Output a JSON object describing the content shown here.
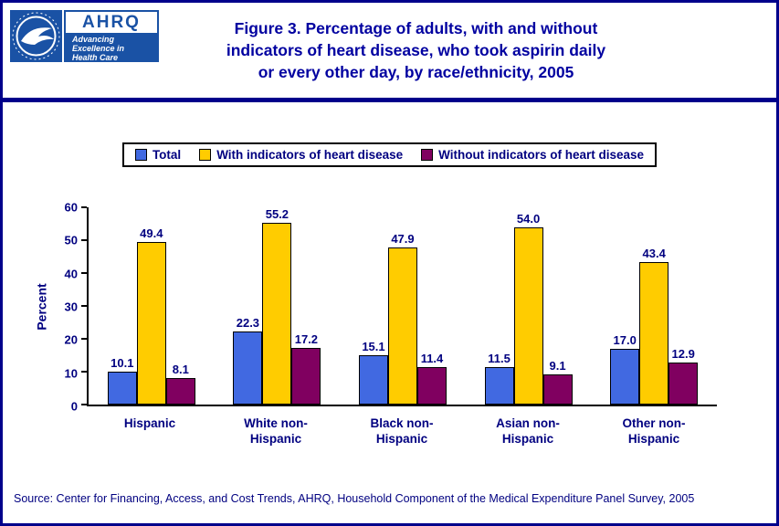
{
  "header": {
    "title_lines": [
      "Figure 3. Percentage of adults, with and without",
      "indicators of heart disease, who took aspirin daily",
      "or every other day, by race/ethnicity, 2005"
    ],
    "ahrq_acronym": "AHRQ",
    "ahrq_tagline_lines": [
      "Advancing",
      "Excellence in",
      "Health Care"
    ]
  },
  "colors": {
    "border_navy": "#00008B",
    "text_navy": "#000080",
    "title_blue": "#0000A0",
    "logo_blue": "#1A52A5"
  },
  "source": "Source: Center for Financing, Access, and Cost Trends, AHRQ, Household Component of the Medical Expenditure Panel Survey, 2005",
  "chart_data": {
    "type": "bar",
    "title": "Figure 3. Percentage of adults, with and without indicators of heart disease, who took aspirin daily or every other day, by race/ethnicity, 2005",
    "categories": [
      "Hispanic",
      "White non-Hispanic",
      "Black non-Hispanic",
      "Asian non-Hispanic",
      "Other non-Hispanic"
    ],
    "category_label_lines": [
      [
        "Hispanic"
      ],
      [
        "White non-",
        "Hispanic"
      ],
      [
        "Black non-",
        "Hispanic"
      ],
      [
        "Asian non-",
        "Hispanic"
      ],
      [
        "Other non-",
        "Hispanic"
      ]
    ],
    "series": [
      {
        "name": "Total",
        "color": "#4169E1",
        "values": [
          10.1,
          22.3,
          15.1,
          11.5,
          17.0
        ]
      },
      {
        "name": "With indicators of heart disease",
        "color": "#FFCC00",
        "values": [
          49.4,
          55.2,
          47.9,
          54.0,
          43.4
        ]
      },
      {
        "name": "Without indicators of heart disease",
        "color": "#800060",
        "values": [
          8.1,
          17.2,
          11.4,
          9.1,
          12.9
        ]
      }
    ],
    "xlabel": "",
    "ylabel": "Percent",
    "ylim": [
      0,
      60
    ],
    "yticks": [
      0,
      10,
      20,
      30,
      40,
      50,
      60
    ],
    "grid": false,
    "legend_position": "top",
    "value_label_decimals": 1
  }
}
